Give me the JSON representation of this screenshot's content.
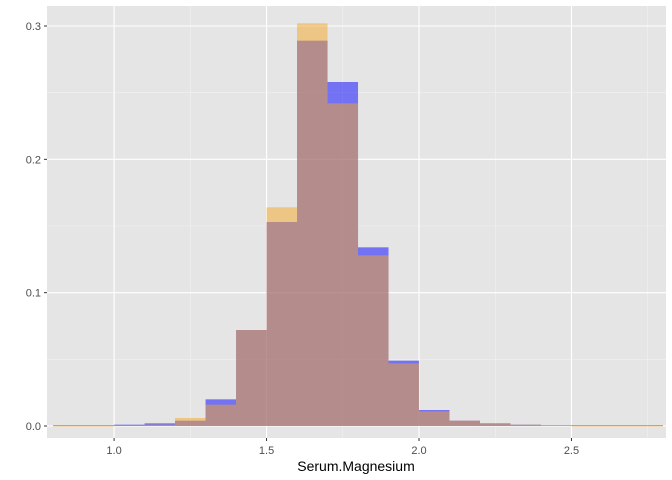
{
  "chart_data": {
    "type": "bar",
    "subtype": "overlaid-histogram",
    "title": "",
    "xlabel": "Serum.Magnesium",
    "ylabel": "",
    "xlim": [
      0.78,
      2.81
    ],
    "ylim": [
      -0.009,
      0.315
    ],
    "x_ticks": [
      1.0,
      1.5,
      2.0,
      2.5
    ],
    "x_tick_labels": [
      "1.0",
      "1.5",
      "2.0",
      "2.5"
    ],
    "y_ticks": [
      0.0,
      0.1,
      0.2,
      0.3
    ],
    "y_tick_labels": [
      "0.0",
      "0.1",
      "0.2",
      "0.3"
    ],
    "grid": true,
    "legend": "none",
    "background": "#e5e5e5",
    "bin_width": 0.1,
    "bin_centers": [
      0.85,
      0.95,
      1.05,
      1.15,
      1.25,
      1.35,
      1.45,
      1.55,
      1.65,
      1.75,
      1.85,
      1.95,
      2.05,
      2.15,
      2.25,
      2.35,
      2.45,
      2.55,
      2.65,
      2.75
    ],
    "series": [
      {
        "color": "#0000ff",
        "opacity": 0.5,
        "values": [
          0.0005,
          0.0005,
          0.001,
          0.002,
          0.004,
          0.02,
          0.072,
          0.153,
          0.289,
          0.258,
          0.134,
          0.049,
          0.012,
          0.004,
          0.002,
          0.001,
          0.0005,
          0.0005,
          0.0005,
          0.0005
        ]
      },
      {
        "color": "#f5a623",
        "opacity": 0.5,
        "values": [
          0.0,
          0.0,
          0.0005,
          0.001,
          0.006,
          0.016,
          0.072,
          0.164,
          0.302,
          0.242,
          0.128,
          0.047,
          0.011,
          0.004,
          0.002,
          0.001,
          0.0005,
          0.0,
          0.0,
          0.0
        ]
      }
    ]
  }
}
